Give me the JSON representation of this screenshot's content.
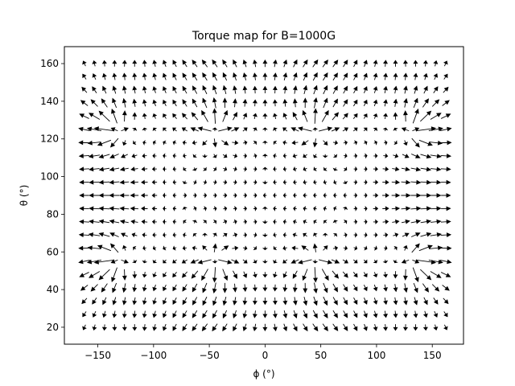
{
  "chart_data": {
    "type": "quiver",
    "title": "Torque map for B=1000G",
    "xlabel": "ϕ (°)",
    "ylabel": "θ (°)",
    "xlim": [
      -180,
      178
    ],
    "ylim": [
      11,
      169
    ],
    "x_ticks": [
      -150,
      -100,
      -50,
      0,
      50,
      100,
      150
    ],
    "y_ticks": [
      20,
      40,
      60,
      80,
      100,
      120,
      140,
      160
    ],
    "grid": false,
    "arrow_color": "#000000",
    "phi_grid": {
      "start": -162,
      "stop": 162,
      "step": 9
    },
    "theta_grid": {
      "start": 20,
      "stop": 160,
      "step": 7
    },
    "field_description": "vector torque field with singular points near phi = ±135, ±45 and theta = 55, 125"
  }
}
